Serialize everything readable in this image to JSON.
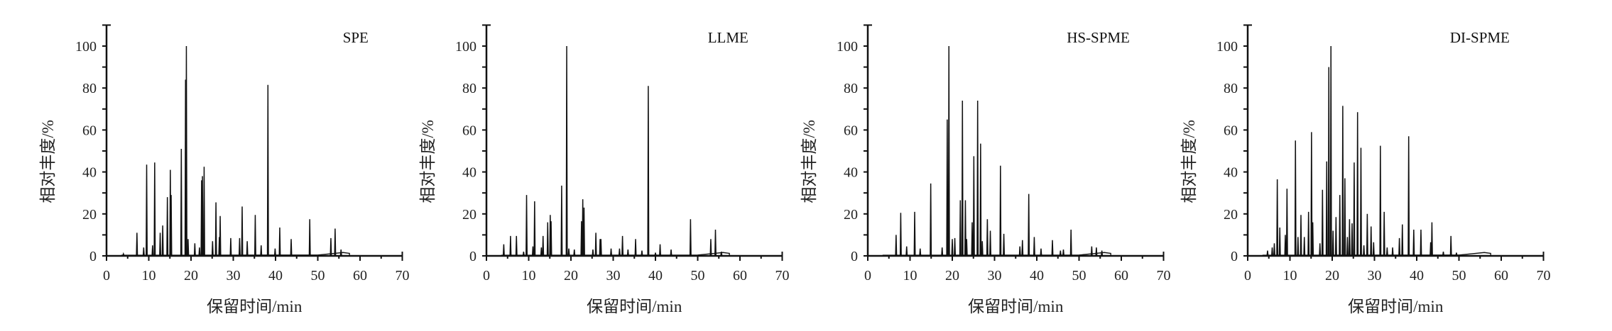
{
  "chart_data": [
    {
      "type": "line",
      "title": "SPE",
      "xlabel": "保留时间/min",
      "ylabel": "相对丰度/%",
      "xlim": [
        0,
        70
      ],
      "ylim": [
        0,
        110
      ],
      "xticks": [
        0,
        10,
        20,
        30,
        40,
        50,
        60,
        70
      ],
      "yticks": [
        0,
        20,
        40,
        60,
        80,
        100
      ],
      "grid": false,
      "color": "#111111",
      "peaks": [
        [
          4.0,
          1
        ],
        [
          7.2,
          11
        ],
        [
          8.8,
          4
        ],
        [
          9.5,
          43.5
        ],
        [
          10.9,
          5
        ],
        [
          11.4,
          44.5
        ],
        [
          12.7,
          11
        ],
        [
          13.3,
          14.5
        ],
        [
          14.4,
          28
        ],
        [
          15.1,
          41
        ],
        [
          15.3,
          29
        ],
        [
          17.7,
          51
        ],
        [
          18.7,
          84
        ],
        [
          18.9,
          100
        ],
        [
          19.3,
          8
        ],
        [
          20.9,
          6
        ],
        [
          22.0,
          4
        ],
        [
          22.5,
          36
        ],
        [
          22.7,
          38
        ],
        [
          23.1,
          42.5
        ],
        [
          25.1,
          7
        ],
        [
          25.9,
          25.5
        ],
        [
          26.7,
          9
        ],
        [
          26.9,
          19
        ],
        [
          29.4,
          8.5
        ],
        [
          31.5,
          8.5
        ],
        [
          32.1,
          23.5
        ],
        [
          33.3,
          7
        ],
        [
          35.2,
          19.5
        ],
        [
          36.6,
          5
        ],
        [
          38.2,
          81.5
        ],
        [
          39.9,
          3.5
        ],
        [
          41.0,
          13.5
        ],
        [
          43.7,
          8
        ],
        [
          48.1,
          17.5
        ],
        [
          53.1,
          8.5
        ],
        [
          54.1,
          13
        ],
        [
          55.5,
          3
        ]
      ]
    },
    {
      "type": "line",
      "title": "LLME",
      "xlabel": "保留时间/min",
      "ylabel": "相对丰度/%",
      "xlim": [
        0,
        70
      ],
      "ylim": [
        0,
        110
      ],
      "xticks": [
        0,
        10,
        20,
        30,
        40,
        50,
        60,
        70
      ],
      "yticks": [
        0,
        20,
        40,
        60,
        80,
        100
      ],
      "grid": false,
      "color": "#111111",
      "peaks": [
        [
          4.1,
          5.5
        ],
        [
          5.7,
          9.5
        ],
        [
          7.1,
          9.5
        ],
        [
          8.8,
          2
        ],
        [
          9.5,
          29
        ],
        [
          11.0,
          4.5
        ],
        [
          11.4,
          26
        ],
        [
          13.0,
          4
        ],
        [
          13.4,
          9.5
        ],
        [
          14.5,
          16
        ],
        [
          15.1,
          19.5
        ],
        [
          15.3,
          16.5
        ],
        [
          17.8,
          33.5
        ],
        [
          19.0,
          100
        ],
        [
          19.5,
          3.5
        ],
        [
          20.8,
          3
        ],
        [
          22.5,
          16.5
        ],
        [
          22.8,
          27
        ],
        [
          23.1,
          23
        ],
        [
          25.2,
          3
        ],
        [
          25.9,
          11
        ],
        [
          26.9,
          8
        ],
        [
          27.1,
          8
        ],
        [
          29.5,
          3.5
        ],
        [
          31.5,
          3.5
        ],
        [
          32.2,
          9.5
        ],
        [
          33.5,
          3
        ],
        [
          35.3,
          8
        ],
        [
          36.8,
          2.5
        ],
        [
          38.3,
          81
        ],
        [
          40.0,
          1.5
        ],
        [
          41.1,
          5.5
        ],
        [
          43.7,
          3
        ],
        [
          48.3,
          17.5
        ],
        [
          53.1,
          8
        ],
        [
          54.2,
          12.5
        ],
        [
          55.6,
          2
        ]
      ]
    },
    {
      "type": "line",
      "title": "HS-SPME",
      "xlabel": "保留时间/min",
      "ylabel": "相对丰度/%",
      "xlim": [
        0,
        70
      ],
      "ylim": [
        0,
        110
      ],
      "xticks": [
        0,
        10,
        20,
        30,
        40,
        50,
        60,
        70
      ],
      "yticks": [
        0,
        20,
        40,
        60,
        80,
        100
      ],
      "grid": false,
      "color": "#111111",
      "peaks": [
        [
          6.7,
          10
        ],
        [
          7.8,
          20.5
        ],
        [
          9.2,
          4.5
        ],
        [
          11.1,
          21
        ],
        [
          12.4,
          3.5
        ],
        [
          14.9,
          34.5
        ],
        [
          17.6,
          4
        ],
        [
          18.8,
          65
        ],
        [
          19.2,
          100
        ],
        [
          20.0,
          8
        ],
        [
          20.6,
          8.5
        ],
        [
          21.9,
          26.5
        ],
        [
          22.4,
          74
        ],
        [
          23.1,
          26.5
        ],
        [
          23.4,
          8
        ],
        [
          24.7,
          16
        ],
        [
          25.1,
          47.5
        ],
        [
          26.0,
          74
        ],
        [
          26.7,
          53.5
        ],
        [
          27.1,
          7
        ],
        [
          28.3,
          17.5
        ],
        [
          29.0,
          12
        ],
        [
          31.4,
          43
        ],
        [
          32.2,
          10.5
        ],
        [
          36.0,
          4.5
        ],
        [
          36.6,
          7.5
        ],
        [
          38.1,
          29.5
        ],
        [
          39.4,
          9
        ],
        [
          41.0,
          3.5
        ],
        [
          43.7,
          7.5
        ],
        [
          45.6,
          2.5
        ],
        [
          46.3,
          3
        ],
        [
          48.1,
          12.5
        ],
        [
          53.0,
          4.5
        ],
        [
          54.1,
          4
        ],
        [
          55.4,
          2.5
        ]
      ]
    },
    {
      "type": "line",
      "title": "DI-SPME",
      "xlabel": "保留时间/min",
      "ylabel": "相对丰度/%",
      "xlim": [
        0,
        70
      ],
      "ylim": [
        0,
        110
      ],
      "xticks": [
        0,
        10,
        20,
        30,
        40,
        50,
        60,
        70
      ],
      "yticks": [
        0,
        20,
        40,
        60,
        80,
        100
      ],
      "grid": false,
      "color": "#111111",
      "peaks": [
        [
          4.7,
          2.5
        ],
        [
          5.8,
          4
        ],
        [
          6.3,
          6
        ],
        [
          7.0,
          36.5
        ],
        [
          7.6,
          13.5
        ],
        [
          8.9,
          10
        ],
        [
          9.3,
          32
        ],
        [
          11.3,
          55
        ],
        [
          11.9,
          9
        ],
        [
          12.6,
          19.5
        ],
        [
          13.4,
          9
        ],
        [
          14.4,
          21
        ],
        [
          15.1,
          59
        ],
        [
          15.4,
          16
        ],
        [
          17.1,
          6
        ],
        [
          17.7,
          31.5
        ],
        [
          18.7,
          45
        ],
        [
          19.2,
          90
        ],
        [
          19.7,
          100
        ],
        [
          20.2,
          12
        ],
        [
          20.9,
          18.5
        ],
        [
          21.8,
          29
        ],
        [
          22.5,
          71.5
        ],
        [
          23.0,
          37
        ],
        [
          23.6,
          9
        ],
        [
          24.1,
          17.5
        ],
        [
          24.7,
          15.5
        ],
        [
          25.2,
          44.5
        ],
        [
          26.0,
          68.5
        ],
        [
          26.8,
          51.5
        ],
        [
          27.5,
          5
        ],
        [
          28.3,
          20
        ],
        [
          29.2,
          14
        ],
        [
          29.8,
          6.5
        ],
        [
          31.4,
          52.5
        ],
        [
          32.3,
          21
        ],
        [
          33.0,
          4
        ],
        [
          34.3,
          4
        ],
        [
          35.9,
          8.5
        ],
        [
          36.6,
          15
        ],
        [
          38.1,
          57
        ],
        [
          39.3,
          12.5
        ],
        [
          41.0,
          12.5
        ],
        [
          43.3,
          6.5
        ],
        [
          43.6,
          16
        ],
        [
          46.3,
          2
        ],
        [
          48.1,
          9.5
        ],
        [
          49.4,
          1.5
        ]
      ]
    }
  ]
}
